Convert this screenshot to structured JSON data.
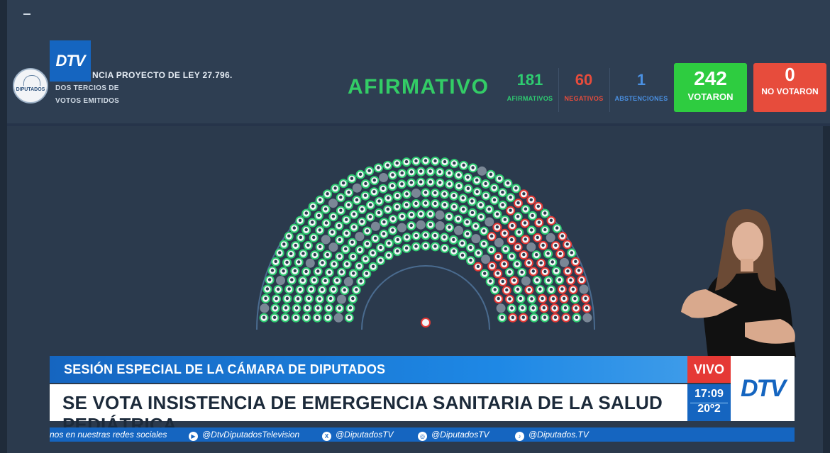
{
  "header": {
    "law_title": "NCIA PROYECTO DE LEY 27.796.",
    "majority_rule": "DOS TERCIOS DE VOTOS EMITIDOS",
    "emblem_text": "DIPUTADOS",
    "logo_text": "DTV"
  },
  "vote": {
    "result": "AFIRMATIVO",
    "afirmativos": {
      "value": "181",
      "label": "AFIRMATIVOS",
      "color": "#2ecc71"
    },
    "negativos": {
      "value": "60",
      "label": "NEGATIVOS",
      "color": "#e74c3c"
    },
    "abstenciones": {
      "value": "1",
      "label": "ABSTENCIONES",
      "color": "#4a90e2"
    },
    "votaron": {
      "value": "242",
      "label": "VOTARON",
      "color": "#2ecc40"
    },
    "no_votaron": {
      "value": "0",
      "label": "NO VOTARON",
      "color": "#e74c3c"
    }
  },
  "seat_colors": {
    "afirmativo": "#2ecc71",
    "negativo": "#e53935",
    "ausente": "#7a8796",
    "abstencion": "#4a90e2"
  },
  "lower_third": {
    "session": "SESIÓN ESPECIAL DE LA CÁMARA DE DIPUTADOS",
    "headline": "SE VOTA INSISTENCIA DE EMERGENCIA SANITARIA DE LA SALUD PEDIÁTRICA",
    "live": "VIVO",
    "time": "17:09",
    "temperature": "20º2",
    "channel_logo": "DTV"
  },
  "ticker": {
    "lead": "nos en nuestras redes sociales",
    "youtube": "@DtvDiputadosTelevision",
    "x": "@DiputadosTV",
    "instagram": "@DiputadosTV",
    "tiktok": "@Diputados.TV"
  }
}
